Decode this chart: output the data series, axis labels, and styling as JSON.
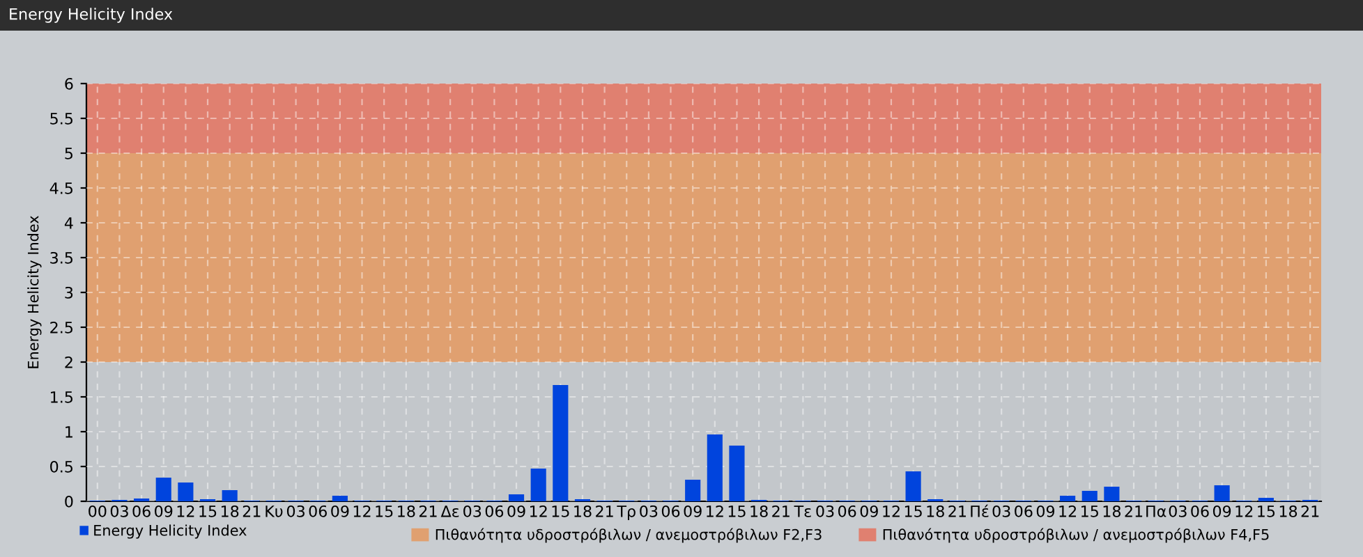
{
  "chart_data": {
    "type": "bar",
    "title": "Energy Helicity Index",
    "ylabel": "Energy Helicity Index",
    "categories": [
      "00",
      "03",
      "06",
      "09",
      "12",
      "15",
      "18",
      "21",
      "Κυ",
      "03",
      "06",
      "09",
      "12",
      "15",
      "18",
      "21",
      "Δε",
      "03",
      "06",
      "09",
      "12",
      "15",
      "18",
      "21",
      "Τρ",
      "03",
      "06",
      "09",
      "12",
      "15",
      "18",
      "21",
      "Τε",
      "03",
      "06",
      "09",
      "12",
      "15",
      "18",
      "21",
      "Πέ",
      "03",
      "06",
      "09",
      "12",
      "15",
      "18",
      "21",
      "Πα",
      "03",
      "06",
      "09",
      "12",
      "15",
      "18",
      "21"
    ],
    "series": [
      {
        "name": "Energy Helicity Index",
        "color": "#0044dd",
        "values": [
          0.01,
          0.02,
          0.04,
          0.34,
          0.27,
          0.03,
          0.16,
          0.01,
          0.01,
          0.01,
          0.01,
          0.08,
          0.01,
          0.01,
          0.01,
          0.01,
          0.01,
          0.01,
          0.01,
          0.1,
          0.47,
          1.67,
          0.03,
          0.01,
          0.01,
          0.01,
          0.01,
          0.31,
          0.96,
          0.8,
          0.02,
          0.01,
          0.01,
          0.01,
          0.01,
          0.01,
          0.01,
          0.43,
          0.03,
          0.01,
          0.01,
          0.01,
          0.01,
          0.01,
          0.08,
          0.15,
          0.21,
          0.01,
          0.01,
          0.01,
          0.01,
          0.23,
          0.01,
          0.05,
          0.01,
          0.02
        ]
      }
    ],
    "ylim": [
      0,
      6
    ],
    "yticks": [
      0,
      0.5,
      1,
      1.5,
      2,
      2.5,
      3,
      3.5,
      4,
      4.5,
      5,
      5.5,
      6
    ],
    "bands": [
      {
        "axis": "y",
        "from": 2,
        "to": 5,
        "label": "Πιθανότητα υδροστρόβιλων / ανεμοστρόβιλων F2,F3",
        "color": "#e0a070"
      },
      {
        "axis": "y",
        "from": 5,
        "to": 6,
        "label": "Πιθανότητα υδροστρόβιλων / ανεμοστρόβιλων F4,F5",
        "color": "#e08070"
      }
    ],
    "grid": true,
    "legend": "bottom left"
  }
}
